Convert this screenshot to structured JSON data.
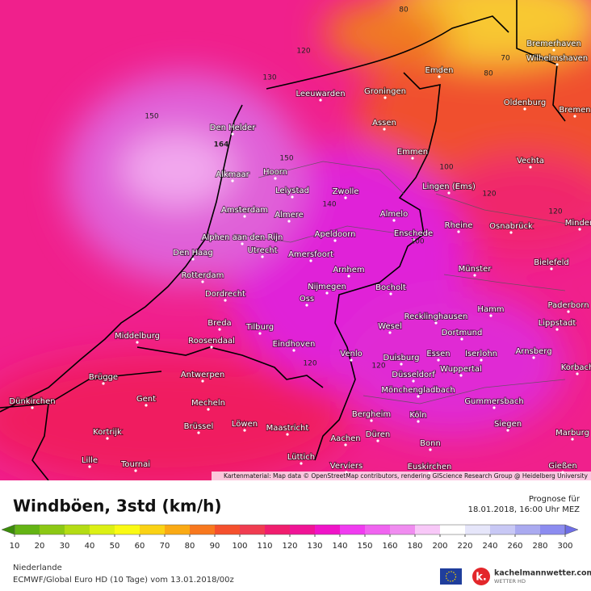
{
  "map": {
    "attribution": "Kartenmaterial: Map data © OpenStreetMap contributors, rendering GIScience Research Group @ Heidelberg University",
    "cities": [
      "Bremerhaven",
      "Wilhelmshaven",
      "Emden",
      "Groningen",
      "Leeuwarden",
      "Oldenburg",
      "Bremen",
      "Den Helder",
      "Assen",
      "Emmen",
      "Vechta",
      "Alkmaar",
      "Hoorn",
      "Lelystad",
      "Zwolle",
      "Lingen (Ems)",
      "Amsterdam",
      "Almere",
      "Almelo",
      "Rheine",
      "Osnabrück",
      "Minden",
      "Alphen aan den Rijn",
      "Apeldoorn",
      "Enschede",
      "Den Haag",
      "Utrecht",
      "Amersfoort",
      "Bielefeld",
      "Rotterdam",
      "Arnhem",
      "Münster",
      "Nijmegen",
      "Bocholt",
      "Dordrecht",
      "Oss",
      "Paderborn",
      "Hamm",
      "Recklinghausen",
      "Breda",
      "Tilburg",
      "Wesel",
      "Lippstadt",
      "Middelburg",
      "Dortmund",
      "Roosendaal",
      "Eindhoven",
      "Iserlohn",
      "Arnsberg",
      "Venlo",
      "Duisburg",
      "Essen",
      "Korbach",
      "Antwerpen",
      "Brügge",
      "Düsseldorf",
      "Wuppertal",
      "Mönchengladbach",
      "Gent",
      "Mecheln",
      "Gummersbach",
      "Dünkirchen",
      "Bergheim",
      "Köln",
      "Siegen",
      "Kortrijk",
      "Brüssel",
      "Löwen",
      "Maastricht",
      "Aachen",
      "Düren",
      "Marburg",
      "Bonn",
      "Lille",
      "Tournai",
      "Lüttich",
      "Verviers",
      "Euskirchen",
      "Gießen"
    ],
    "contour_labels": [
      "80",
      "120",
      "130",
      "70",
      "80",
      "150",
      "164",
      "150",
      "100",
      "120",
      "120",
      "140",
      "100",
      "120",
      "120"
    ]
  },
  "header": {
    "title": "Windböen, 3std (km/h)",
    "forecast_label": "Prognose für",
    "forecast_time": "18.01.2018, 16:00 Uhr MEZ"
  },
  "legend": {
    "ticks": [
      10,
      20,
      30,
      40,
      50,
      60,
      70,
      80,
      90,
      100,
      110,
      120,
      130,
      140,
      150,
      160,
      180,
      200,
      220,
      240,
      260,
      280,
      300
    ],
    "colors": [
      "#64b414",
      "#8cc814",
      "#b4dc14",
      "#dcf014",
      "#fafa14",
      "#fad214",
      "#faaa14",
      "#f8781e",
      "#f5502d",
      "#f03c50",
      "#f01e6e",
      "#f01496",
      "#f014c8",
      "#f03cf0",
      "#f064f0",
      "#f08cf0",
      "#f8c8f8",
      "#ffffff",
      "#e6e6fa",
      "#c8c8f5",
      "#aaaaf0",
      "#8c8cf0"
    ],
    "under_color": "#3c8c0a",
    "over_color": "#6e6ee6"
  },
  "footer": {
    "region": "Niederlande",
    "model": "ECMWF/Global Euro HD (10 Tage) vom 13.01.2018/00z",
    "brand": "kachelmannwetter.com",
    "brand_sub": "WETTER HD"
  }
}
